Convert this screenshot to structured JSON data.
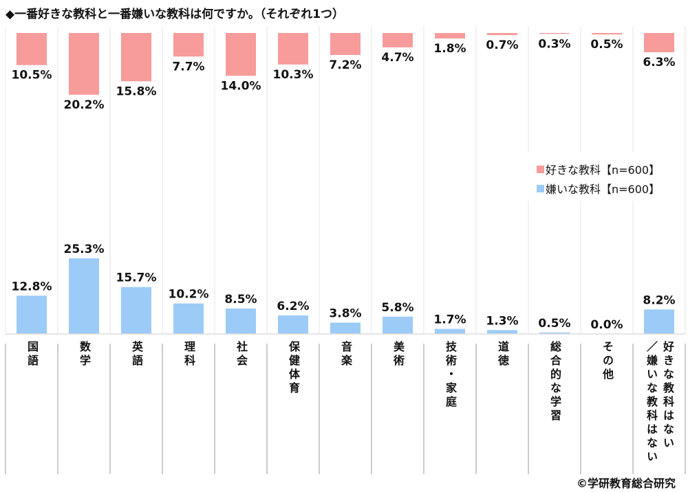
{
  "title": "◆一番好きな教科と一番嫌いな教科は何ですか。（それぞれ1つ）",
  "credit": "©学研教育総合研究",
  "chart_data": {
    "type": "bar",
    "layout": "mirrored: liked bars hang from top, disliked bars rise from bottom",
    "categories": [
      "国語",
      "数学",
      "英語",
      "理科",
      "社会",
      "保健体育",
      "音楽",
      "美術",
      "技術・家庭",
      "道徳",
      "総合的な学習",
      "その他",
      "好きな教科はない\n／嫌いな教科はない"
    ],
    "series": [
      {
        "name": "好きな教科【n=600】",
        "color": "#f79b9b",
        "values": [
          10.5,
          20.2,
          15.8,
          7.7,
          14.0,
          10.3,
          7.2,
          4.7,
          1.8,
          0.7,
          0.3,
          0.5,
          6.3
        ]
      },
      {
        "name": "嫌いな教科【n=600】",
        "color": "#9ccbf7",
        "values": [
          12.8,
          25.3,
          15.7,
          10.2,
          8.5,
          6.2,
          3.8,
          5.8,
          1.7,
          1.3,
          0.5,
          0.0,
          8.2
        ]
      }
    ],
    "unit": "%",
    "legend_position": "right",
    "grid": false
  }
}
